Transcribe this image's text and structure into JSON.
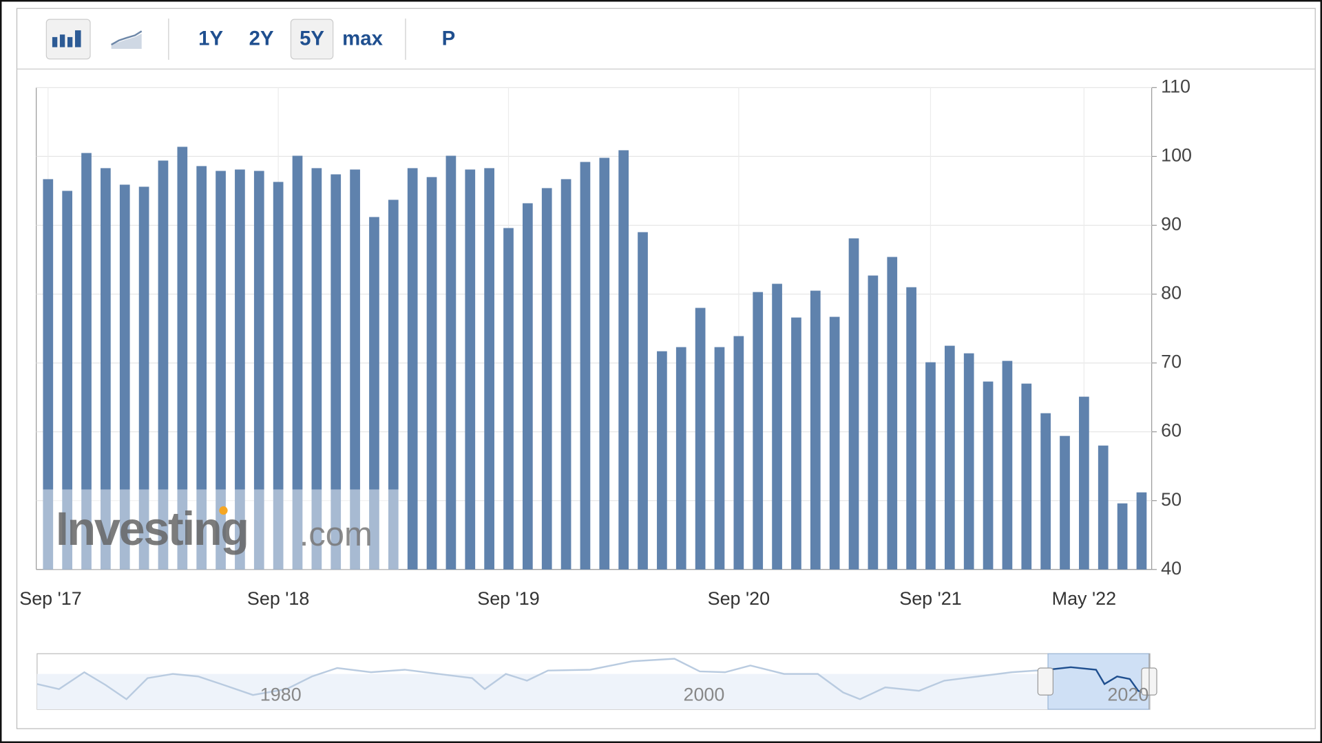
{
  "toolbar": {
    "buttons": [
      "1Y",
      "2Y",
      "5Y",
      "max",
      "P"
    ],
    "active": "5Y"
  },
  "chart_data": {
    "type": "bar",
    "categories": [
      "Sep '17",
      null,
      null,
      null,
      null,
      null,
      null,
      null,
      null,
      null,
      null,
      null,
      "Sep '18",
      null,
      null,
      null,
      null,
      null,
      null,
      null,
      null,
      null,
      null,
      null,
      "Sep '19",
      null,
      null,
      null,
      null,
      null,
      null,
      null,
      null,
      null,
      null,
      null,
      "Sep '20",
      null,
      null,
      null,
      null,
      null,
      null,
      null,
      null,
      null,
      "Sep '21",
      null,
      null,
      null,
      null,
      null,
      null,
      null,
      "May '22",
      null,
      null,
      null
    ],
    "values": [
      96.7,
      95.0,
      100.5,
      98.3,
      95.9,
      95.6,
      99.4,
      101.4,
      98.6,
      97.9,
      98.1,
      97.9,
      96.3,
      100.1,
      98.3,
      97.4,
      98.1,
      91.2,
      93.7,
      98.3,
      97.0,
      100.1,
      98.1,
      98.3,
      89.6,
      93.2,
      95.4,
      96.7,
      99.2,
      99.8,
      100.9,
      89.0,
      71.7,
      72.3,
      78.0,
      72.3,
      73.9,
      80.3,
      81.5,
      76.6,
      80.5,
      76.7,
      88.1,
      82.7,
      85.4,
      81.0,
      70.1,
      72.5,
      71.4,
      67.3,
      70.3,
      67.0,
      62.7,
      59.4,
      65.1,
      58.0,
      49.6,
      51.2
    ],
    "color": "#5f82ad",
    "ylim": [
      40,
      110
    ],
    "yticks": [
      40,
      50,
      60,
      70,
      80,
      90,
      100,
      110
    ],
    "grid": true
  },
  "watermark": {
    "brand": "Investing",
    "suffix": ".com"
  },
  "navigator": {
    "labels": [
      "1980",
      "2000",
      "2020"
    ]
  }
}
